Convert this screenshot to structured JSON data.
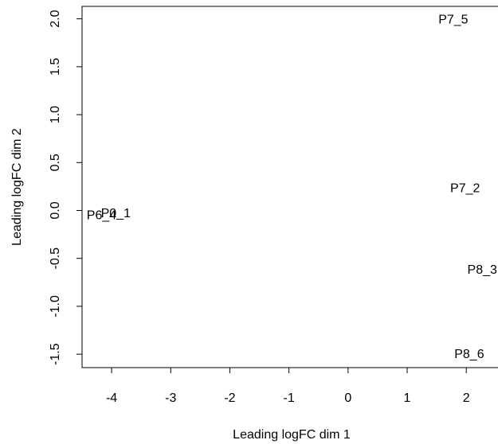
{
  "chart_data": {
    "type": "scatter",
    "labels": [
      "P7_5",
      "P7_2",
      "P8_3",
      "P8_6",
      "P6_4",
      "P0_1"
    ],
    "x": [
      1.78,
      1.98,
      2.27,
      2.05,
      -4.17,
      -3.93
    ],
    "y": [
      2.0,
      0.24,
      -0.61,
      -1.49,
      -0.04,
      -0.02
    ],
    "xlabel": "Leading logFC dim 1",
    "ylabel": "Leading logFC dim 2",
    "xlim": [
      -4.5,
      2.55
    ],
    "ylim": [
      -1.64,
      2.13
    ],
    "xticks": [
      -4,
      -3,
      -2,
      -1,
      0,
      1,
      2
    ],
    "yticks": [
      {
        "value": -1.5,
        "label": "-1.5"
      },
      {
        "value": -1,
        "label": "-1.0"
      },
      {
        "value": -0.5,
        "label": "-0.5"
      },
      {
        "value": 0,
        "label": "0.0"
      },
      0.5,
      {
        "value": 1,
        "label": "1.0"
      },
      1.5,
      {
        "value": 2,
        "label": "2.0"
      }
    ],
    "color": "#000000"
  }
}
